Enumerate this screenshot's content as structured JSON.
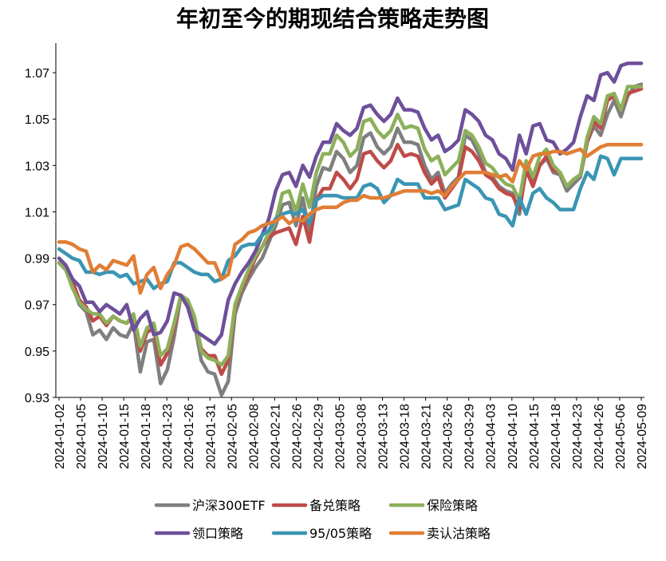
{
  "chart_data": {
    "type": "line",
    "title": "年初至今的期现结合策略走势图",
    "xlabel": "",
    "ylabel": "",
    "ylim": [
      0.93,
      1.08
    ],
    "yticks": [
      "0.93",
      "0.95",
      "0.97",
      "0.99",
      "1.01",
      "1.03",
      "1.05",
      "1.07"
    ],
    "xticks": [
      "2024-01-02",
      "2024-01-05",
      "2024-01-10",
      "2024-01-15",
      "2024-01-18",
      "2024-01-23",
      "2024-01-26",
      "2024-01-31",
      "2024-02-05",
      "2024-02-08",
      "2024-02-21",
      "2024-02-26",
      "2024-02-29",
      "2024-03-05",
      "2024-03-08",
      "2024-03-13",
      "2024-03-18",
      "2024-03-21",
      "2024-03-26",
      "2024-03-29",
      "2024-04-03",
      "2024-04-10",
      "2024-04-15",
      "2024-04-18",
      "2024-04-23",
      "2024-04-26",
      "2024-05-06",
      "2024-05-09"
    ],
    "legend_position": "bottom",
    "points_per_series": 87,
    "series": [
      {
        "name": "沪深300ETF",
        "color": "#7f7f7f",
        "values": [
          0.988,
          0.985,
          0.978,
          0.97,
          0.967,
          0.957,
          0.959,
          0.955,
          0.96,
          0.957,
          0.956,
          0.962,
          0.941,
          0.954,
          0.955,
          0.936,
          0.942,
          0.956,
          0.974,
          0.971,
          0.962,
          0.946,
          0.941,
          0.94,
          0.931,
          0.937,
          0.966,
          0.975,
          0.981,
          0.986,
          0.99,
          0.997,
          1.004,
          1.013,
          1.014,
          1.004,
          1.016,
          1.001,
          1.021,
          1.029,
          1.028,
          1.036,
          1.033,
          1.027,
          1.03,
          1.042,
          1.044,
          1.038,
          1.035,
          1.038,
          1.046,
          1.04,
          1.04,
          1.039,
          1.03,
          1.024,
          1.027,
          1.018,
          1.022,
          1.025,
          1.043,
          1.041,
          1.035,
          1.027,
          1.025,
          1.021,
          1.019,
          1.018,
          1.009,
          1.03,
          1.022,
          1.03,
          1.033,
          1.027,
          1.026,
          1.019,
          1.022,
          1.025,
          1.04,
          1.047,
          1.043,
          1.052,
          1.058,
          1.051,
          1.06,
          1.064,
          1.065
        ]
      },
      {
        "name": "备兑策略",
        "color": "#be4b48",
        "values": [
          0.988,
          0.986,
          0.98,
          0.972,
          0.969,
          0.963,
          0.965,
          0.961,
          0.965,
          0.963,
          0.962,
          0.965,
          0.95,
          0.958,
          0.96,
          0.944,
          0.949,
          0.96,
          0.974,
          0.972,
          0.964,
          0.951,
          0.948,
          0.948,
          0.94,
          0.946,
          0.969,
          0.977,
          0.983,
          0.99,
          0.995,
          0.999,
          1.001,
          1.002,
          1.003,
          0.996,
          1.008,
          0.997,
          1.015,
          1.02,
          1.02,
          1.027,
          1.024,
          1.02,
          1.024,
          1.035,
          1.036,
          1.032,
          1.029,
          1.032,
          1.039,
          1.034,
          1.035,
          1.034,
          1.027,
          1.022,
          1.025,
          1.016,
          1.02,
          1.024,
          1.038,
          1.036,
          1.032,
          1.026,
          1.024,
          1.02,
          1.018,
          1.017,
          1.011,
          1.028,
          1.021,
          1.03,
          1.034,
          1.028,
          1.027,
          1.021,
          1.024,
          1.026,
          1.04,
          1.049,
          1.046,
          1.058,
          1.06,
          1.054,
          1.061,
          1.062,
          1.063
        ]
      },
      {
        "name": "保险策略",
        "color": "#8cb05a",
        "values": [
          0.988,
          0.985,
          0.977,
          0.971,
          0.968,
          0.966,
          0.966,
          0.962,
          0.965,
          0.963,
          0.962,
          0.966,
          0.952,
          0.96,
          0.962,
          0.948,
          0.951,
          0.962,
          0.974,
          0.972,
          0.965,
          0.95,
          0.947,
          0.946,
          0.944,
          0.948,
          0.97,
          0.978,
          0.985,
          0.991,
          0.995,
          1.001,
          1.006,
          1.018,
          1.019,
          1.01,
          1.022,
          1.012,
          1.027,
          1.035,
          1.035,
          1.043,
          1.04,
          1.034,
          1.037,
          1.049,
          1.05,
          1.045,
          1.042,
          1.045,
          1.052,
          1.046,
          1.047,
          1.046,
          1.037,
          1.032,
          1.034,
          1.026,
          1.029,
          1.032,
          1.045,
          1.043,
          1.038,
          1.031,
          1.029,
          1.025,
          1.022,
          1.021,
          1.015,
          1.032,
          1.025,
          1.034,
          1.037,
          1.03,
          1.027,
          1.021,
          1.024,
          1.026,
          1.042,
          1.051,
          1.048,
          1.06,
          1.061,
          1.054,
          1.064,
          1.064,
          1.064
        ]
      },
      {
        "name": "领口策略",
        "color": "#6e4f9a",
        "values": [
          0.99,
          0.987,
          0.981,
          0.978,
          0.971,
          0.971,
          0.967,
          0.97,
          0.968,
          0.966,
          0.97,
          0.959,
          0.964,
          0.967,
          0.957,
          0.958,
          0.963,
          0.975,
          0.974,
          0.969,
          0.959,
          0.957,
          0.955,
          0.953,
          0.957,
          0.972,
          0.979,
          0.984,
          0.988,
          0.993,
          1.0,
          1.007,
          1.019,
          1.026,
          1.027,
          1.021,
          1.03,
          1.025,
          1.034,
          1.04,
          1.04,
          1.048,
          1.045,
          1.043,
          1.046,
          1.055,
          1.056,
          1.052,
          1.049,
          1.052,
          1.059,
          1.054,
          1.054,
          1.053,
          1.046,
          1.041,
          1.043,
          1.036,
          1.038,
          1.041,
          1.054,
          1.052,
          1.049,
          1.043,
          1.041,
          1.035,
          1.033,
          1.028,
          1.043,
          1.035,
          1.047,
          1.048,
          1.041,
          1.04,
          1.035,
          1.037,
          1.04,
          1.051,
          1.06,
          1.058,
          1.069,
          1.07,
          1.066,
          1.073,
          1.074,
          1.074,
          1.074
        ]
      },
      {
        "name": "95/05策略",
        "color": "#3a95b3",
        "values": [
          0.994,
          0.992,
          0.99,
          0.989,
          0.984,
          0.984,
          0.983,
          0.984,
          0.984,
          0.982,
          0.983,
          0.979,
          0.98,
          0.981,
          0.977,
          0.979,
          0.98,
          0.988,
          0.988,
          0.986,
          0.984,
          0.983,
          0.983,
          0.98,
          0.981,
          0.989,
          0.991,
          0.995,
          0.996,
          0.996,
          1.0,
          1.002,
          1.007,
          1.009,
          1.01,
          1.009,
          1.011,
          1.005,
          1.015,
          1.017,
          1.017,
          1.017,
          1.016,
          1.016,
          1.016,
          1.021,
          1.022,
          1.02,
          1.014,
          1.017,
          1.024,
          1.022,
          1.022,
          1.022,
          1.016,
          1.016,
          1.016,
          1.011,
          1.012,
          1.013,
          1.024,
          1.022,
          1.02,
          1.016,
          1.015,
          1.009,
          1.008,
          1.004,
          1.016,
          1.009,
          1.018,
          1.02,
          1.016,
          1.014,
          1.011,
          1.011,
          1.011,
          1.02,
          1.027,
          1.024,
          1.034,
          1.033,
          1.026,
          1.033,
          1.033,
          1.033,
          1.033
        ]
      },
      {
        "name": "卖认沽策略",
        "color": "#e07e35",
        "values": [
          0.997,
          0.997,
          0.996,
          0.994,
          0.993,
          0.984,
          0.987,
          0.985,
          0.989,
          0.988,
          0.987,
          0.991,
          0.975,
          0.983,
          0.986,
          0.977,
          0.983,
          0.987,
          0.995,
          0.996,
          0.994,
          0.991,
          0.988,
          0.988,
          0.981,
          0.983,
          0.996,
          0.998,
          1.001,
          1.002,
          1.004,
          1.005,
          1.006,
          1.008,
          1.005,
          1.007,
          1.006,
          1.009,
          1.011,
          1.012,
          1.012,
          1.012,
          1.014,
          1.015,
          1.015,
          1.017,
          1.016,
          1.016,
          1.016,
          1.017,
          1.018,
          1.019,
          1.019,
          1.019,
          1.019,
          1.018,
          1.019,
          1.017,
          1.021,
          1.024,
          1.027,
          1.027,
          1.027,
          1.027,
          1.026,
          1.025,
          1.026,
          1.023,
          1.032,
          1.028,
          1.034,
          1.035,
          1.035,
          1.036,
          1.036,
          1.035,
          1.036,
          1.037,
          1.034,
          1.036,
          1.038,
          1.039,
          1.039,
          1.039,
          1.039,
          1.039,
          1.039
        ]
      }
    ]
  }
}
